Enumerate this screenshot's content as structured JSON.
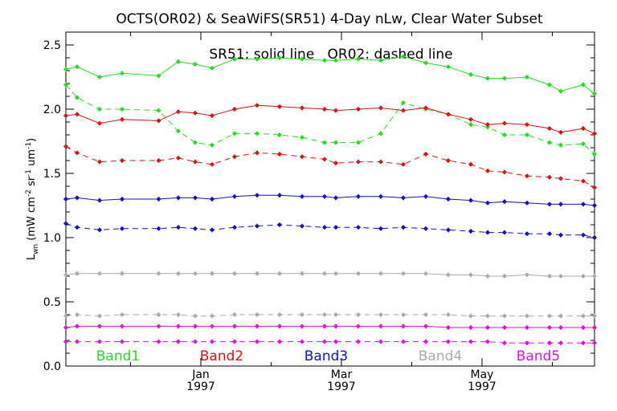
{
  "chart_data": {
    "type": "line",
    "title": "OCTS(OR02) & SeaWiFS(SR51) 4-Day nLw, Clear Water Subset",
    "annotation": "SR51: solid line   OR02: dashed line",
    "ylabel": "L_wn (mW cm^-2 sr^-1 um^-1)",
    "ylabel_parts": {
      "main": "L",
      "sub1": "wn",
      "pre": "(mW cm",
      "sup1": "-2",
      "mid1": " sr",
      "sup2": "-1",
      "mid2": " um",
      "sup3": "-1",
      "post": ")"
    },
    "xlabel": "",
    "ylim": [
      0,
      2.6
    ],
    "xlim": [
      0,
      188
    ],
    "grid": false,
    "yticks": [
      "0.0",
      "0.5",
      "1.0",
      "1.5",
      "2.0",
      "2.5"
    ],
    "ytick_values": [
      0,
      0.5,
      1.0,
      1.5,
      2.0,
      2.5
    ],
    "xticks": [
      {
        "x": 48,
        "label1": "Jan",
        "label2": "1997"
      },
      {
        "x": 98,
        "label1": "Mar",
        "label2": "1997"
      },
      {
        "x": 148,
        "label1": "May",
        "label2": "1997"
      }
    ],
    "legend": [
      {
        "name": "Band1",
        "color": "#22dd22"
      },
      {
        "name": "Band2",
        "color": "#dd1111"
      },
      {
        "name": "Band3",
        "color": "#1111cc"
      },
      {
        "name": "Band4",
        "color": "#aaaaaa"
      },
      {
        "name": "Band5",
        "color": "#dd11dd"
      }
    ],
    "series": [
      {
        "name": "Band1",
        "color": "#22dd22",
        "style": "solid",
        "points": [
          [
            0,
            2.31
          ],
          [
            4,
            2.33
          ],
          [
            12,
            2.25
          ],
          [
            20,
            2.28
          ],
          [
            33,
            2.26
          ],
          [
            40,
            2.37
          ],
          [
            46,
            2.35
          ],
          [
            52,
            2.32
          ],
          [
            60,
            2.39
          ],
          [
            68,
            2.39
          ],
          [
            76,
            2.4
          ],
          [
            84,
            2.39
          ],
          [
            92,
            2.38
          ],
          [
            96,
            2.38
          ],
          [
            104,
            2.39
          ],
          [
            112,
            2.38
          ],
          [
            120,
            2.41
          ],
          [
            128,
            2.36
          ],
          [
            136,
            2.33
          ],
          [
            144,
            2.27
          ],
          [
            150,
            2.24
          ],
          [
            156,
            2.24
          ],
          [
            164,
            2.25
          ],
          [
            172,
            2.19
          ],
          [
            176,
            2.14
          ],
          [
            184,
            2.19
          ],
          [
            188,
            2.12
          ]
        ]
      },
      {
        "name": "Band1",
        "color": "#22dd22",
        "style": "dashed",
        "points": [
          [
            0,
            2.19
          ],
          [
            4,
            2.09
          ],
          [
            12,
            2.0
          ],
          [
            20,
            2.0
          ],
          [
            33,
            1.99
          ],
          [
            40,
            1.83
          ],
          [
            46,
            1.74
          ],
          [
            52,
            1.72
          ],
          [
            60,
            1.81
          ],
          [
            68,
            1.81
          ],
          [
            76,
            1.8
          ],
          [
            84,
            1.78
          ],
          [
            92,
            1.74
          ],
          [
            96,
            1.74
          ],
          [
            104,
            1.74
          ],
          [
            112,
            1.81
          ],
          [
            120,
            2.05
          ],
          [
            128,
            2.0
          ],
          [
            136,
            1.96
          ],
          [
            144,
            1.88
          ],
          [
            150,
            1.86
          ],
          [
            156,
            1.8
          ],
          [
            164,
            1.8
          ],
          [
            172,
            1.74
          ],
          [
            176,
            1.72
          ],
          [
            184,
            1.73
          ],
          [
            188,
            1.65
          ]
        ]
      },
      {
        "name": "Band2",
        "color": "#dd1111",
        "style": "solid",
        "points": [
          [
            0,
            1.95
          ],
          [
            4,
            1.96
          ],
          [
            12,
            1.89
          ],
          [
            20,
            1.92
          ],
          [
            33,
            1.91
          ],
          [
            40,
            1.98
          ],
          [
            46,
            1.97
          ],
          [
            52,
            1.95
          ],
          [
            60,
            2.0
          ],
          [
            68,
            2.03
          ],
          [
            76,
            2.02
          ],
          [
            84,
            2.01
          ],
          [
            92,
            2.0
          ],
          [
            96,
            1.99
          ],
          [
            104,
            2.0
          ],
          [
            112,
            2.01
          ],
          [
            120,
            1.99
          ],
          [
            128,
            2.01
          ],
          [
            136,
            1.96
          ],
          [
            144,
            1.92
          ],
          [
            150,
            1.88
          ],
          [
            156,
            1.89
          ],
          [
            164,
            1.88
          ],
          [
            172,
            1.85
          ],
          [
            176,
            1.82
          ],
          [
            184,
            1.85
          ],
          [
            188,
            1.81
          ]
        ]
      },
      {
        "name": "Band2",
        "color": "#dd1111",
        "style": "dashed",
        "points": [
          [
            0,
            1.71
          ],
          [
            4,
            1.66
          ],
          [
            12,
            1.59
          ],
          [
            20,
            1.6
          ],
          [
            33,
            1.6
          ],
          [
            40,
            1.62
          ],
          [
            46,
            1.59
          ],
          [
            52,
            1.57
          ],
          [
            60,
            1.63
          ],
          [
            68,
            1.66
          ],
          [
            76,
            1.65
          ],
          [
            84,
            1.63
          ],
          [
            92,
            1.61
          ],
          [
            96,
            1.58
          ],
          [
            104,
            1.59
          ],
          [
            112,
            1.59
          ],
          [
            120,
            1.57
          ],
          [
            128,
            1.65
          ],
          [
            136,
            1.6
          ],
          [
            144,
            1.57
          ],
          [
            150,
            1.52
          ],
          [
            156,
            1.51
          ],
          [
            164,
            1.48
          ],
          [
            172,
            1.47
          ],
          [
            176,
            1.46
          ],
          [
            184,
            1.44
          ],
          [
            188,
            1.39
          ]
        ]
      },
      {
        "name": "Band3",
        "color": "#1111cc",
        "style": "solid",
        "points": [
          [
            0,
            1.3
          ],
          [
            4,
            1.31
          ],
          [
            12,
            1.29
          ],
          [
            20,
            1.3
          ],
          [
            33,
            1.3
          ],
          [
            40,
            1.31
          ],
          [
            46,
            1.31
          ],
          [
            52,
            1.3
          ],
          [
            60,
            1.32
          ],
          [
            68,
            1.33
          ],
          [
            76,
            1.33
          ],
          [
            84,
            1.32
          ],
          [
            92,
            1.32
          ],
          [
            96,
            1.31
          ],
          [
            104,
            1.32
          ],
          [
            112,
            1.32
          ],
          [
            120,
            1.31
          ],
          [
            128,
            1.32
          ],
          [
            136,
            1.3
          ],
          [
            144,
            1.29
          ],
          [
            150,
            1.27
          ],
          [
            156,
            1.28
          ],
          [
            164,
            1.27
          ],
          [
            172,
            1.26
          ],
          [
            176,
            1.26
          ],
          [
            184,
            1.26
          ],
          [
            188,
            1.25
          ]
        ]
      },
      {
        "name": "Band3",
        "color": "#1111cc",
        "style": "dashed",
        "points": [
          [
            0,
            1.11
          ],
          [
            4,
            1.08
          ],
          [
            12,
            1.06
          ],
          [
            20,
            1.07
          ],
          [
            33,
            1.07
          ],
          [
            40,
            1.08
          ],
          [
            46,
            1.07
          ],
          [
            52,
            1.06
          ],
          [
            60,
            1.08
          ],
          [
            68,
            1.09
          ],
          [
            76,
            1.1
          ],
          [
            84,
            1.09
          ],
          [
            92,
            1.08
          ],
          [
            96,
            1.08
          ],
          [
            104,
            1.08
          ],
          [
            112,
            1.07
          ],
          [
            120,
            1.08
          ],
          [
            128,
            1.07
          ],
          [
            136,
            1.06
          ],
          [
            144,
            1.05
          ],
          [
            150,
            1.04
          ],
          [
            156,
            1.04
          ],
          [
            164,
            1.03
          ],
          [
            172,
            1.03
          ],
          [
            176,
            1.02
          ],
          [
            184,
            1.02
          ],
          [
            188,
            1.0
          ]
        ]
      },
      {
        "name": "Band4",
        "color": "#aaaaaa",
        "style": "solid",
        "points": [
          [
            0,
            0.71
          ],
          [
            4,
            0.72
          ],
          [
            12,
            0.72
          ],
          [
            20,
            0.72
          ],
          [
            33,
            0.72
          ],
          [
            40,
            0.72
          ],
          [
            46,
            0.72
          ],
          [
            52,
            0.72
          ],
          [
            60,
            0.72
          ],
          [
            68,
            0.72
          ],
          [
            76,
            0.72
          ],
          [
            84,
            0.72
          ],
          [
            92,
            0.72
          ],
          [
            96,
            0.72
          ],
          [
            104,
            0.72
          ],
          [
            112,
            0.72
          ],
          [
            120,
            0.72
          ],
          [
            128,
            0.72
          ],
          [
            136,
            0.71
          ],
          [
            144,
            0.71
          ],
          [
            150,
            0.7
          ],
          [
            156,
            0.7
          ],
          [
            164,
            0.71
          ],
          [
            172,
            0.7
          ],
          [
            176,
            0.7
          ],
          [
            184,
            0.7
          ],
          [
            188,
            0.7
          ]
        ]
      },
      {
        "name": "Band4",
        "color": "#aaaaaa",
        "style": "dashed",
        "points": [
          [
            0,
            0.39
          ],
          [
            4,
            0.4
          ],
          [
            12,
            0.39
          ],
          [
            20,
            0.4
          ],
          [
            33,
            0.4
          ],
          [
            40,
            0.4
          ],
          [
            46,
            0.39
          ],
          [
            52,
            0.39
          ],
          [
            60,
            0.4
          ],
          [
            68,
            0.4
          ],
          [
            76,
            0.4
          ],
          [
            84,
            0.4
          ],
          [
            92,
            0.4
          ],
          [
            96,
            0.4
          ],
          [
            104,
            0.4
          ],
          [
            112,
            0.4
          ],
          [
            120,
            0.4
          ],
          [
            128,
            0.4
          ],
          [
            136,
            0.4
          ],
          [
            144,
            0.39
          ],
          [
            150,
            0.39
          ],
          [
            156,
            0.39
          ],
          [
            164,
            0.39
          ],
          [
            172,
            0.39
          ],
          [
            176,
            0.39
          ],
          [
            184,
            0.39
          ],
          [
            188,
            0.39
          ]
        ]
      },
      {
        "name": "Band5",
        "color": "#dd11dd",
        "style": "solid",
        "points": [
          [
            0,
            0.3
          ],
          [
            4,
            0.31
          ],
          [
            12,
            0.31
          ],
          [
            20,
            0.31
          ],
          [
            33,
            0.31
          ],
          [
            40,
            0.31
          ],
          [
            46,
            0.31
          ],
          [
            52,
            0.31
          ],
          [
            60,
            0.31
          ],
          [
            68,
            0.31
          ],
          [
            76,
            0.31
          ],
          [
            84,
            0.31
          ],
          [
            92,
            0.31
          ],
          [
            96,
            0.31
          ],
          [
            104,
            0.31
          ],
          [
            112,
            0.31
          ],
          [
            120,
            0.31
          ],
          [
            128,
            0.31
          ],
          [
            136,
            0.3
          ],
          [
            144,
            0.3
          ],
          [
            150,
            0.3
          ],
          [
            156,
            0.3
          ],
          [
            164,
            0.3
          ],
          [
            172,
            0.3
          ],
          [
            176,
            0.3
          ],
          [
            184,
            0.3
          ],
          [
            188,
            0.3
          ]
        ]
      },
      {
        "name": "Band5",
        "color": "#dd11dd",
        "style": "dashed",
        "points": [
          [
            0,
            0.19
          ],
          [
            4,
            0.19
          ],
          [
            12,
            0.19
          ],
          [
            20,
            0.19
          ],
          [
            33,
            0.19
          ],
          [
            40,
            0.19
          ],
          [
            46,
            0.19
          ],
          [
            52,
            0.19
          ],
          [
            60,
            0.19
          ],
          [
            68,
            0.19
          ],
          [
            76,
            0.19
          ],
          [
            84,
            0.19
          ],
          [
            92,
            0.19
          ],
          [
            96,
            0.19
          ],
          [
            104,
            0.19
          ],
          [
            112,
            0.19
          ],
          [
            120,
            0.19
          ],
          [
            128,
            0.19
          ],
          [
            136,
            0.19
          ],
          [
            144,
            0.19
          ],
          [
            150,
            0.19
          ],
          [
            156,
            0.18
          ],
          [
            164,
            0.18
          ],
          [
            172,
            0.18
          ],
          [
            176,
            0.18
          ],
          [
            184,
            0.18
          ],
          [
            188,
            0.18
          ]
        ]
      }
    ]
  }
}
